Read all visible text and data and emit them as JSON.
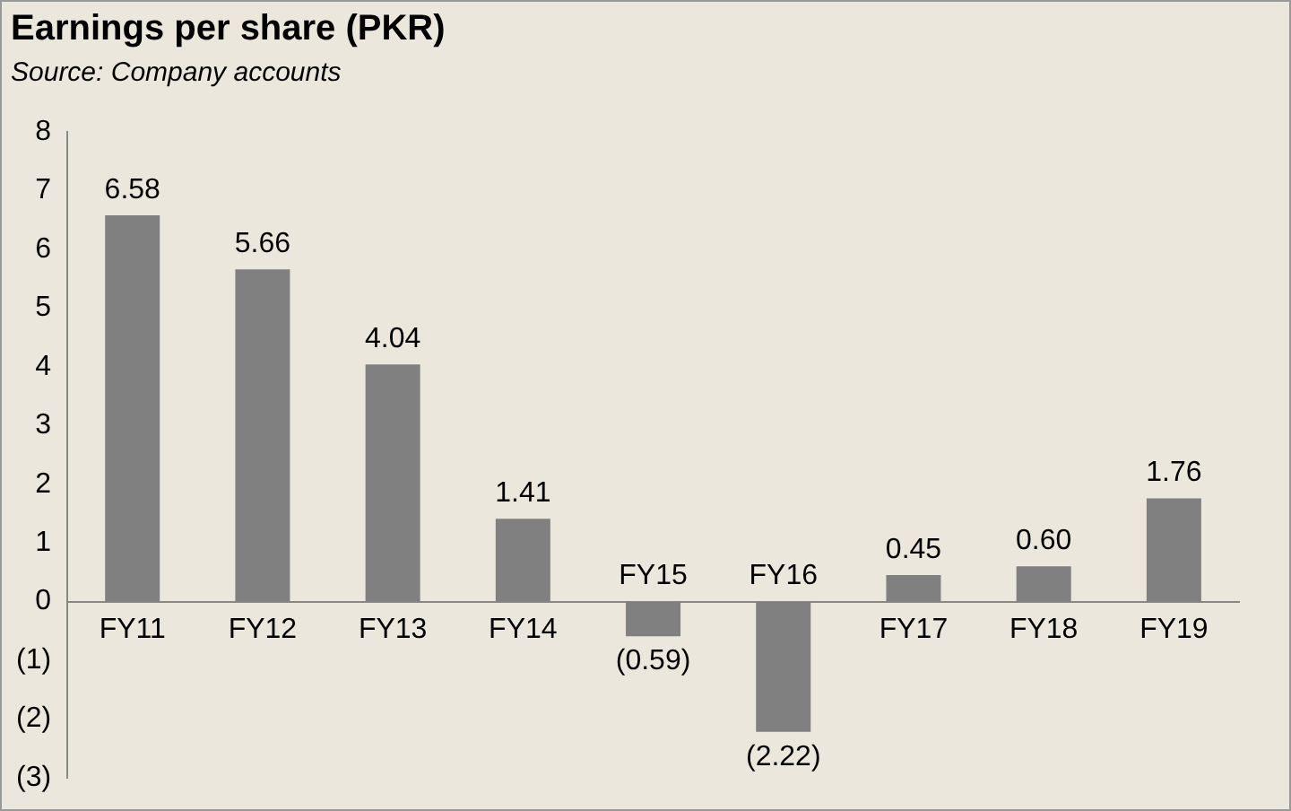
{
  "chart_data": {
    "type": "bar",
    "title": "Earnings per share (PKR)",
    "annotations": [
      "Source: Company accounts"
    ],
    "categories": [
      "FY11",
      "FY12",
      "FY13",
      "FY14",
      "FY15",
      "FY16",
      "FY17",
      "FY18",
      "FY19"
    ],
    "values": [
      6.58,
      5.66,
      4.04,
      1.41,
      -0.59,
      -2.22,
      0.45,
      0.6,
      1.76
    ],
    "value_labels": [
      "6.58",
      "5.66",
      "4.04",
      "1.41",
      "(0.59)",
      "(2.22)",
      "0.45",
      "0.60",
      "1.76"
    ],
    "color": "#808080",
    "ylim": [
      -3,
      8
    ],
    "yticks": [
      8,
      7,
      6,
      5,
      4,
      3,
      2,
      1,
      0,
      {
        "value": -1,
        "label": "(1)"
      },
      {
        "value": -2,
        "label": "(2)"
      },
      {
        "value": -3,
        "label": "(3)"
      }
    ],
    "grid": false,
    "legend": false
  }
}
